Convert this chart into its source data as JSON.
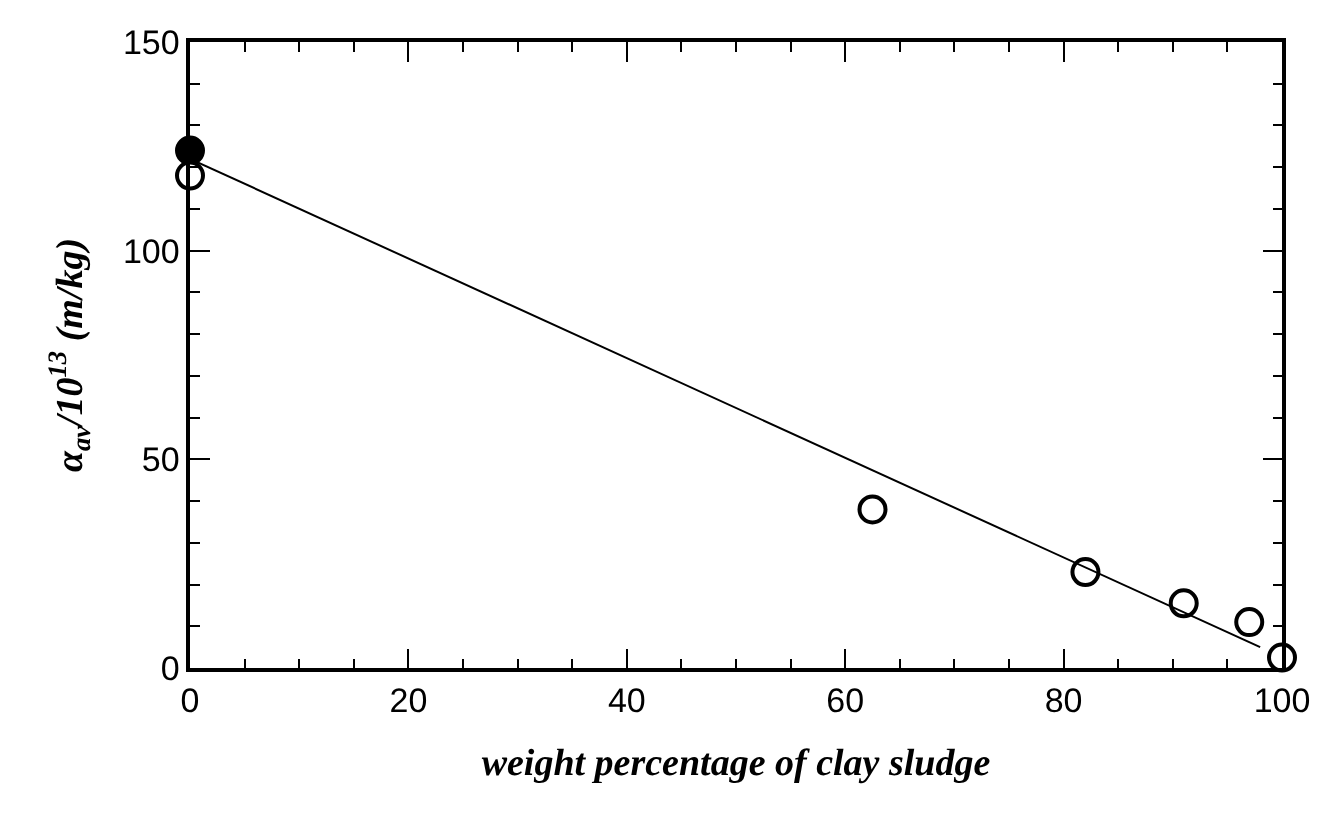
{
  "chart_data": {
    "type": "scatter",
    "xlabel": "weight percentage of clay sludge",
    "ylabel": "α$_{av}$/10$^{13}$ (m/kg)",
    "xlim": [
      0,
      100
    ],
    "xticks": [
      0,
      20,
      40,
      60,
      80,
      100
    ],
    "ylim": [
      0,
      150
    ],
    "yticks": [
      0,
      50,
      100,
      150
    ],
    "marker": "circle",
    "series": [
      {
        "color": "#000000",
        "x": [
          0
        ],
        "values": [
          124
        ]
      },
      {
        "color": "#ffffff",
        "x": [
          0,
          62.5,
          82,
          91,
          97,
          100
        ],
        "values": [
          118,
          38,
          23,
          15.5,
          11,
          2.5
        ]
      },
      {
        "type": "line",
        "color": "#000000",
        "x": [
          0,
          98
        ],
        "values": [
          122,
          5
        ],
        "marker": "none"
      }
    ]
  }
}
